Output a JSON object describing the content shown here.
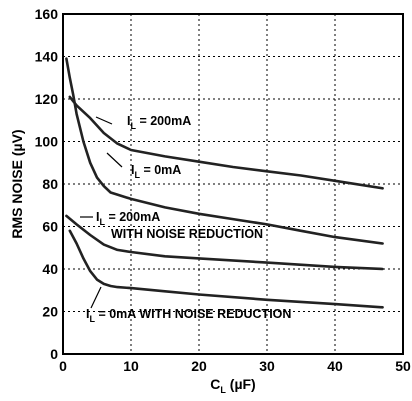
{
  "chart_data": {
    "type": "line",
    "ylabel": "RMS NOISE (µV)",
    "xlabel_main": "C",
    "xlabel_sub": "L",
    "xlabel_unit": " (µF)",
    "xlim": [
      0,
      50
    ],
    "ylim": [
      0,
      160
    ],
    "x_ticks": [
      "0",
      "10",
      "20",
      "30",
      "40",
      "50"
    ],
    "y_ticks": [
      "0",
      "20",
      "40",
      "60",
      "80",
      "100",
      "120",
      "140",
      "160"
    ],
    "grid": true,
    "series": [
      {
        "x": [
          1,
          2,
          4,
          6,
          8,
          10,
          15,
          20,
          25,
          30,
          35,
          40,
          47
        ],
        "y": [
          121,
          117,
          111,
          104,
          99,
          96,
          93,
          90.5,
          88,
          86,
          84,
          81.5,
          78
        ]
      },
      {
        "x": [
          0.5,
          1,
          1.5,
          2,
          3,
          4,
          5,
          6,
          7,
          8,
          10,
          15,
          20,
          25,
          30,
          35,
          40,
          47
        ],
        "y": [
          139,
          130,
          122,
          113,
          100,
          90,
          83,
          79,
          76,
          75,
          73,
          69,
          66,
          63.5,
          61,
          58,
          55,
          52
        ]
      },
      {
        "x": [
          0.5,
          2,
          4,
          6,
          8,
          10,
          15,
          20,
          30,
          40,
          47
        ],
        "y": [
          65,
          61,
          56,
          51.5,
          49,
          48,
          46,
          45,
          43,
          41,
          40
        ]
      },
      {
        "x": [
          1,
          2,
          3,
          4,
          5,
          6,
          7,
          8,
          10,
          15,
          20,
          30,
          40,
          47
        ],
        "y": [
          58,
          52,
          45,
          39,
          35,
          33,
          32,
          31.5,
          31,
          29.5,
          28,
          25.5,
          23.5,
          22
        ]
      }
    ],
    "annotations": [
      {
        "prefix": "I",
        "sub": "L",
        "text": " = 200mA"
      },
      {
        "prefix": "I",
        "sub": "L",
        "text": " = 0mA"
      },
      {
        "prefix": "I",
        "sub": "L",
        "text": " = 200mA"
      },
      {
        "prefix": "",
        "sub": "",
        "text": "WITH NOISE REDUCTION"
      },
      {
        "prefix": "I",
        "sub": "L",
        "text": " = 0mA WITH NOISE REDUCTION"
      }
    ]
  }
}
